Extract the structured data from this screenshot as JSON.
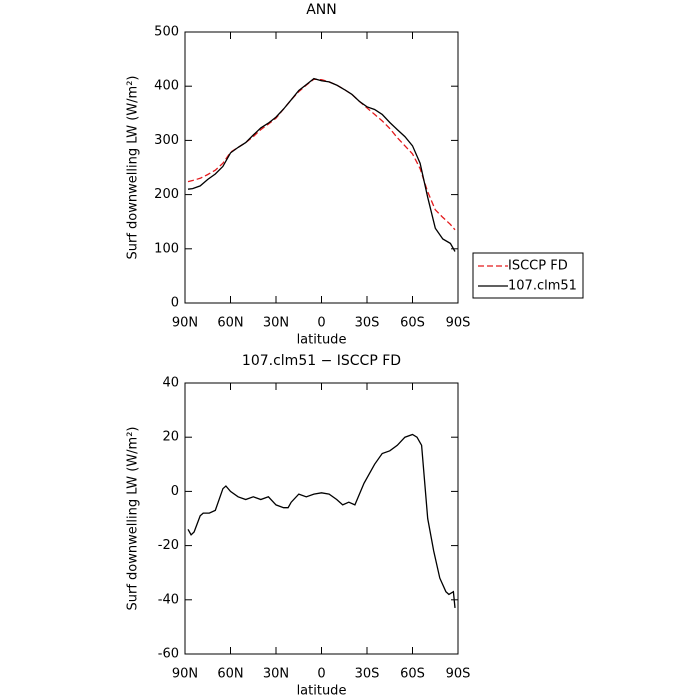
{
  "chart_data": [
    {
      "type": "line",
      "title": "ANN",
      "xlabel": "latitude",
      "ylabel": "Surf downwelling LW (W/m²)",
      "x": [
        88,
        85,
        80,
        75,
        70,
        65,
        60,
        55,
        50,
        45,
        40,
        35,
        30,
        25,
        20,
        15,
        10,
        5,
        0,
        -5,
        -10,
        -15,
        -20,
        -25,
        -30,
        -35,
        -40,
        -45,
        -50,
        -55,
        -60,
        -65,
        -70,
        -75,
        -80,
        -85,
        -88
      ],
      "series": [
        {
          "name": "ISCCP FD",
          "color": "#e31a1c",
          "dash": true,
          "values": [
            224,
            226,
            230,
            237,
            245,
            258,
            278,
            287,
            296,
            307,
            320,
            330,
            341,
            358,
            375,
            390,
            402,
            413,
            412,
            408,
            402,
            394,
            385,
            372,
            360,
            348,
            336,
            322,
            305,
            290,
            275,
            248,
            205,
            172,
            158,
            145,
            135
          ]
        },
        {
          "name": "107.clm51",
          "color": "#000000",
          "dash": false,
          "values": [
            210,
            211,
            216,
            228,
            238,
            252,
            277,
            287,
            296,
            310,
            323,
            332,
            343,
            358,
            375,
            392,
            403,
            414,
            410,
            408,
            402,
            394,
            385,
            372,
            362,
            357,
            348,
            333,
            320,
            307,
            290,
            258,
            195,
            138,
            118,
            110,
            95
          ]
        }
      ],
      "xlim": [
        90,
        -90
      ],
      "xticks": [
        {
          "value": 90,
          "label": "90N"
        },
        {
          "value": 60,
          "label": "60N"
        },
        {
          "value": 30,
          "label": "30N"
        },
        0,
        {
          "value": -30,
          "label": "30S"
        },
        {
          "value": -60,
          "label": "60S"
        },
        {
          "value": -90,
          "label": "90S"
        }
      ],
      "ylim": [
        0,
        500
      ],
      "yticks": [
        0,
        100,
        200,
        300,
        400,
        500
      ],
      "legend": "right"
    },
    {
      "type": "line",
      "title": "107.clm51 − ISCCP FD",
      "xlabel": "latitude",
      "ylabel": "Surf downwelling LW (W/m²)",
      "x": [
        88,
        86,
        84,
        80,
        78,
        74,
        70,
        65,
        63,
        60,
        55,
        50,
        45,
        40,
        35,
        30,
        25,
        22,
        20,
        15,
        10,
        5,
        0,
        -5,
        -10,
        -14,
        -18,
        -22,
        -28,
        -35,
        -40,
        -45,
        -50,
        -55,
        -60,
        -63,
        -66,
        -70,
        -74,
        -78,
        -82,
        -84,
        -87,
        -88
      ],
      "values": [
        -14,
        -16,
        -15,
        -9,
        -8,
        -8,
        -7,
        1,
        2,
        0,
        -2,
        -3,
        -2,
        -3,
        -2,
        -5,
        -6,
        -6,
        -4,
        -1,
        -2,
        -1,
        -0.5,
        -1,
        -3,
        -5,
        -4,
        -5,
        3,
        10,
        14,
        15,
        17,
        20,
        21,
        20,
        17,
        -10,
        -22,
        -32,
        -37,
        -38,
        -37,
        -43
      ],
      "color": "#000000",
      "xlim": [
        90,
        -90
      ],
      "xticks": [
        {
          "value": 90,
          "label": "90N"
        },
        {
          "value": 60,
          "label": "60N"
        },
        {
          "value": 30,
          "label": "30N"
        },
        0,
        {
          "value": -30,
          "label": "30S"
        },
        {
          "value": -60,
          "label": "60S"
        },
        {
          "value": -90,
          "label": "90S"
        }
      ],
      "ylim": [
        -60,
        40
      ],
      "yticks": [
        -60,
        -40,
        -20,
        0,
        20,
        40
      ]
    }
  ]
}
